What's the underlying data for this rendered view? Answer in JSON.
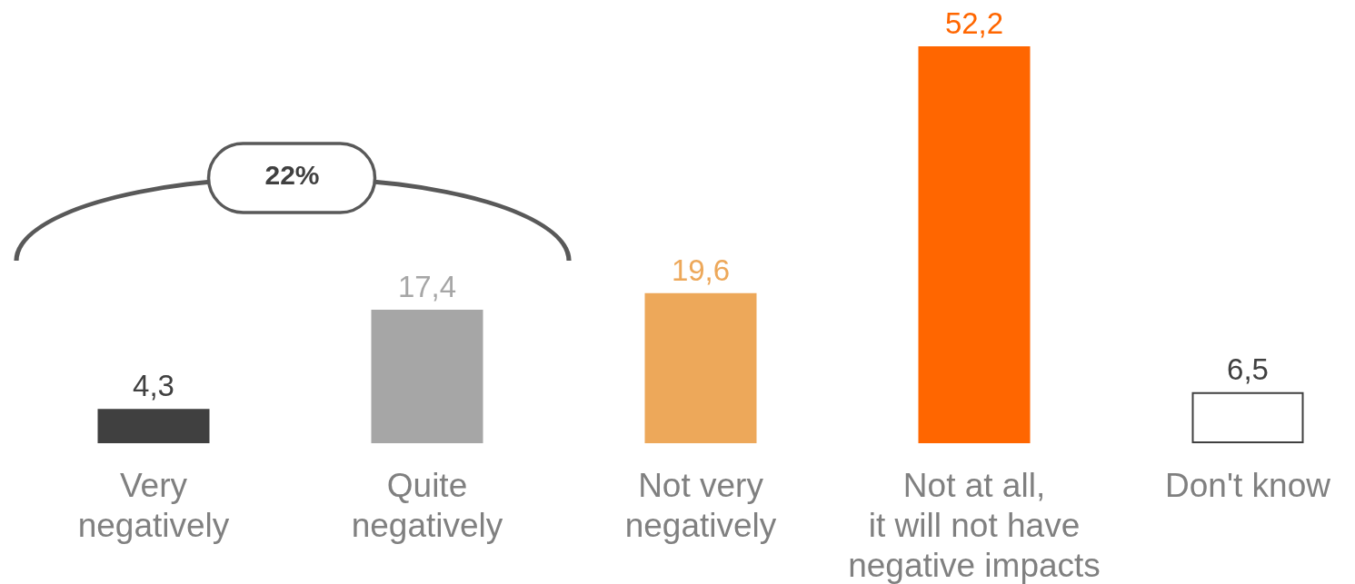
{
  "chart_data": {
    "type": "bar",
    "categories": [
      "Very\nnegatively",
      "Quite\nnegatively",
      "Not very\nnegatively",
      "Not at all,\nit will not have\nnegative impacts",
      "Don't know"
    ],
    "values": [
      4.3,
      17.4,
      19.6,
      52.2,
      6.5
    ],
    "value_labels": [
      "4,3",
      "17,4",
      "19,6",
      "52,2",
      "6,5"
    ],
    "colors": [
      "#404040",
      "#a6a6a6",
      "#eda85a",
      "#ff6600",
      "#ffffff"
    ],
    "annotations": [
      "22%"
    ]
  }
}
